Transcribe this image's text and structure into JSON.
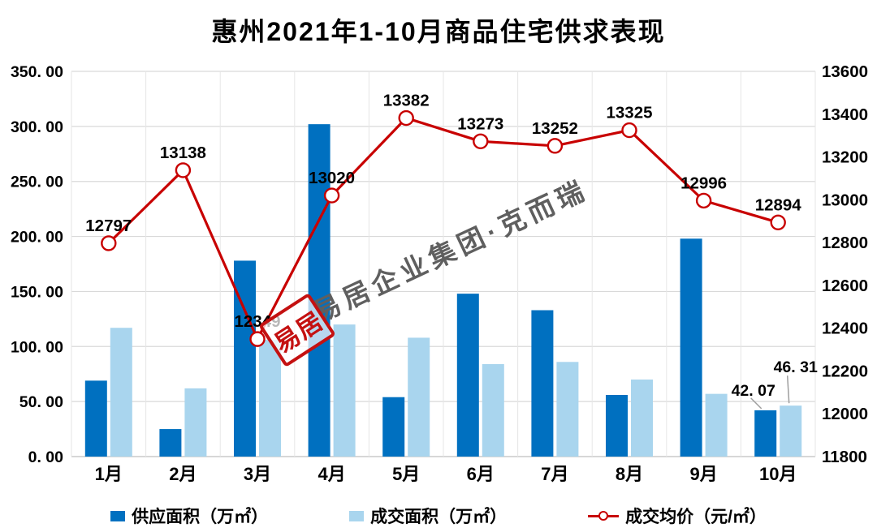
{
  "chart_data": {
    "type": "combo",
    "title": "惠州2021年1-10月商品住宅供求表现",
    "categories": [
      "1月",
      "2月",
      "3月",
      "4月",
      "5月",
      "6月",
      "7月",
      "8月",
      "9月",
      "10月"
    ],
    "series": [
      {
        "name": "供应面积（万㎡）",
        "type": "bar",
        "axis": "left",
        "color": "#0070C0",
        "values": [
          69,
          25,
          178,
          302,
          54,
          148,
          133,
          56,
          198,
          42.07
        ]
      },
      {
        "name": "成交面积（万㎡）",
        "type": "bar",
        "axis": "left",
        "color": "#A9D5EE",
        "values": [
          117,
          62,
          106,
          120,
          108,
          84,
          86,
          70,
          57,
          46.31
        ]
      },
      {
        "name": "成交均价（元/㎡）",
        "type": "line",
        "axis": "right",
        "color": "#C80000",
        "values": [
          12797,
          13138,
          12349,
          13020,
          13382,
          13273,
          13252,
          13325,
          12996,
          12894
        ]
      }
    ],
    "left_axis": {
      "min": 0,
      "max": 350,
      "step": 50,
      "tick_labels": [
        "350. 00",
        "300. 00",
        "250. 00",
        "200. 00",
        "150. 00",
        "100. 00",
        "50. 00",
        "0. 00"
      ]
    },
    "right_axis": {
      "min": 11800,
      "max": 13600,
      "step": 200,
      "tick_labels": [
        "13600",
        "13400",
        "13200",
        "13000",
        "12800",
        "12600",
        "12400",
        "12200",
        "12000",
        "11800"
      ]
    },
    "line_point_labels": [
      "12797",
      "13138",
      "12349",
      "13020",
      "13382",
      "13273",
      "13252",
      "13325",
      "12996",
      "12894"
    ],
    "bar_callouts": [
      {
        "label": "42. 07",
        "month_index": 9,
        "series_index": 0
      },
      {
        "label": "46. 31",
        "month_index": 9,
        "series_index": 1
      }
    ],
    "grid": true,
    "legend_position": "bottom"
  },
  "watermark": {
    "text": "易居企业集团·克而瑞",
    "stamp_text": "易居",
    "text_color": "#5F5F5F",
    "stamp_color": "#C41111"
  },
  "style_colors": {
    "h_gridline": "#D9D9D9",
    "v_gridline": "#E6E6E6",
    "baseline": "#BFBFBF",
    "axis_text": "#000000"
  }
}
